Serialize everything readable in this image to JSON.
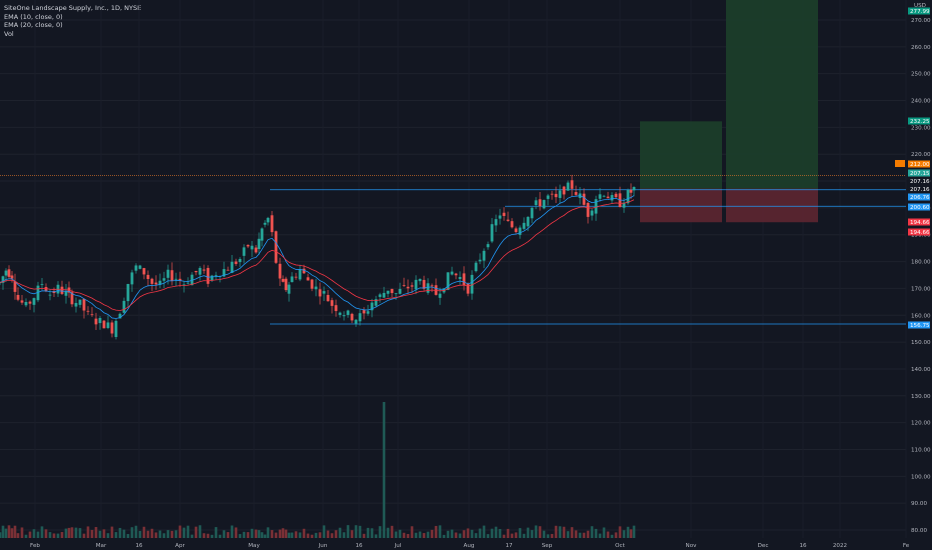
{
  "legend": {
    "title": "SiteOne Landscape Supply, Inc., 1D, NYSE",
    "ema10": "EMA (10, close, 0)",
    "ema20": "EMA (20, close, 0)",
    "vol": "Vol"
  },
  "chart_data": {
    "type": "candlestick",
    "currency": "USD",
    "y_range": [
      77,
      280
    ],
    "y_ticks": [
      "270.00",
      "260.00",
      "250.00",
      "240.00",
      "230.00",
      "220.00",
      "210.00",
      "200.00",
      "190.00",
      "180.00",
      "170.00",
      "160.00",
      "150.00",
      "140.00",
      "130.00",
      "120.00",
      "110.00",
      "100.00",
      "90.00",
      "80.00"
    ],
    "x_labels": [
      "Feb",
      "Mar",
      "16",
      "Apr",
      "May",
      "Jun",
      "16",
      "Jul",
      "Aug",
      "17",
      "Sep",
      "Oct",
      "Nov",
      "Dec",
      "16",
      "2022",
      "Fe"
    ],
    "levels": [
      {
        "label": "206.76",
        "price": 206.76,
        "color": "#2196f3"
      },
      {
        "label": "200.60",
        "price": 200.6,
        "color": "#2196f3"
      },
      {
        "label": "156.75",
        "price": 156.75,
        "color": "#2196f3"
      }
    ],
    "price_tags": [
      {
        "label": "277.99",
        "price": 277.99,
        "color": "#089981"
      },
      {
        "label": "232.25",
        "price": 232.25,
        "color": "#089981"
      },
      {
        "label": "212.00",
        "price": 212.0,
        "color": "#f57c00"
      },
      {
        "label": "207.15",
        "price": 207.15,
        "color": "#26a69a"
      },
      {
        "label": "207.16",
        "price": 207.16,
        "color": "#131722"
      },
      {
        "label": "207.16",
        "price": 207.16,
        "color": "#131722"
      },
      {
        "label": "194.66",
        "price": 194.66,
        "color": "#f23645"
      },
      {
        "label": "194.66",
        "price": 194.66,
        "color": "#f23645"
      }
    ],
    "positions": [
      {
        "entry": 207.16,
        "target": 232.25,
        "stop": 194.66
      },
      {
        "entry": 207.16,
        "target": 277.99,
        "stop": 194.66
      }
    ],
    "series": [
      {
        "name": "EMA (10, close, 0)",
        "color": "#2196f3"
      },
      {
        "name": "EMA (20, close, 0)",
        "color": "#f23645"
      }
    ],
    "volume_spike": {
      "x_label": "Jun 16",
      "note": "largest volume bar"
    },
    "close_points": [
      [
        0,
        172
      ],
      [
        6,
        177
      ],
      [
        12,
        175
      ],
      [
        18,
        166
      ],
      [
        26,
        163
      ],
      [
        34,
        167
      ],
      [
        42,
        172
      ],
      [
        50,
        168
      ],
      [
        58,
        170
      ],
      [
        66,
        168
      ],
      [
        72,
        166
      ],
      [
        80,
        164
      ],
      [
        88,
        160
      ],
      [
        96,
        158
      ],
      [
        104,
        157
      ],
      [
        112,
        155
      ],
      [
        120,
        162
      ],
      [
        128,
        172
      ],
      [
        136,
        178
      ],
      [
        144,
        176
      ],
      [
        152,
        172
      ],
      [
        160,
        171
      ],
      [
        168,
        175
      ],
      [
        176,
        174
      ],
      [
        184,
        172
      ],
      [
        192,
        175
      ],
      [
        200,
        177
      ],
      [
        208,
        173
      ],
      [
        216,
        176
      ],
      [
        224,
        177
      ],
      [
        232,
        179
      ],
      [
        240,
        181
      ],
      [
        248,
        186
      ],
      [
        256,
        184
      ],
      [
        262,
        192
      ],
      [
        268,
        196
      ],
      [
        272,
        190
      ],
      [
        276,
        180
      ],
      [
        280,
        172
      ],
      [
        286,
        170
      ],
      [
        292,
        174
      ],
      [
        300,
        177
      ],
      [
        308,
        173
      ],
      [
        316,
        170
      ],
      [
        324,
        168
      ],
      [
        332,
        164
      ],
      [
        340,
        162
      ],
      [
        348,
        160
      ],
      [
        356,
        159
      ],
      [
        364,
        160
      ],
      [
        372,
        165
      ],
      [
        380,
        167
      ],
      [
        388,
        170
      ],
      [
        396,
        168
      ],
      [
        404,
        170
      ],
      [
        412,
        171
      ],
      [
        420,
        173
      ],
      [
        428,
        170
      ],
      [
        436,
        168
      ],
      [
        444,
        172
      ],
      [
        452,
        176
      ],
      [
        460,
        174
      ],
      [
        468,
        170
      ],
      [
        476,
        178
      ],
      [
        484,
        185
      ],
      [
        492,
        192
      ],
      [
        500,
        198
      ],
      [
        508,
        194
      ],
      [
        516,
        192
      ],
      [
        524,
        196
      ],
      [
        532,
        200
      ],
      [
        540,
        202
      ],
      [
        548,
        204
      ],
      [
        556,
        203
      ],
      [
        564,
        207
      ],
      [
        572,
        208
      ],
      [
        580,
        204
      ],
      [
        588,
        198
      ],
      [
        596,
        204
      ],
      [
        604,
        206
      ],
      [
        612,
        203
      ],
      [
        620,
        202
      ],
      [
        628,
        205
      ],
      [
        634,
        207
      ]
    ]
  }
}
